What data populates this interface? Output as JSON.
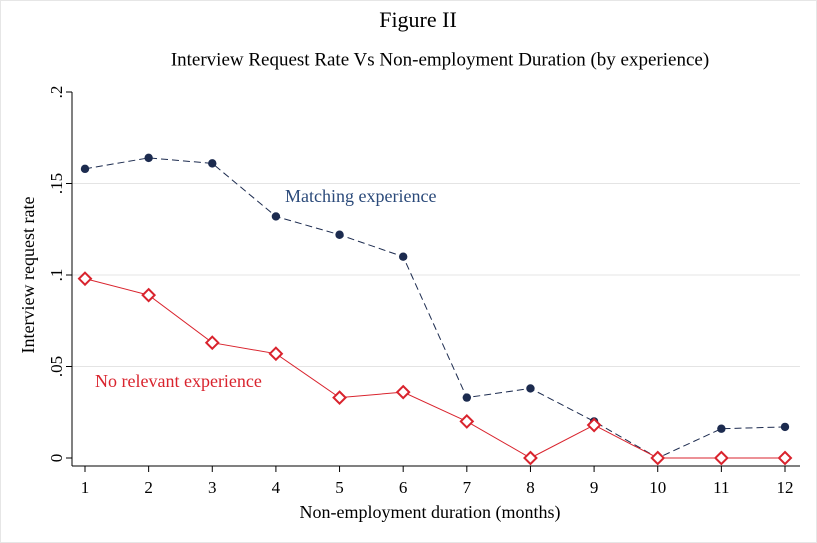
{
  "chart_data": {
    "type": "line",
    "title": "Figure II",
    "subtitle": "Interview Request Rate Vs Non-employment Duration (by experience)",
    "x_label": "Non-employment duration (months)",
    "y_label": "Interview request rate",
    "x": [
      1,
      2,
      3,
      4,
      5,
      6,
      7,
      8,
      9,
      10,
      11,
      12
    ],
    "xlim": [
      1,
      12
    ],
    "xticks": [
      1,
      2,
      3,
      4,
      5,
      6,
      7,
      8,
      9,
      10,
      11,
      12
    ],
    "ylim": [
      0,
      0.2
    ],
    "yticks": [
      0,
      {
        "value": 0.05,
        "label": ".05"
      },
      {
        "value": 0.1,
        "label": ".1"
      },
      {
        "value": 0.15,
        "label": ".15"
      },
      {
        "value": 0.2,
        "label": ".2"
      }
    ],
    "grid": true,
    "series": [
      {
        "name": "Matching experience",
        "color": "#1c2b4f",
        "label_color": "#2b4a7a",
        "linestyle": "dashed",
        "marker": "circle",
        "values": [
          0.158,
          0.164,
          0.161,
          0.132,
          0.122,
          0.11,
          0.033,
          0.038,
          0.02,
          0.0,
          0.016,
          0.017
        ]
      },
      {
        "name": "No relevant experience",
        "color": "#d9232d",
        "label_color": "#d9232d",
        "linestyle": "solid",
        "marker": "diamond",
        "values": [
          0.098,
          0.089,
          0.063,
          0.057,
          0.033,
          0.036,
          0.02,
          0.0,
          0.018,
          0.0,
          0.0,
          0.0
        ]
      }
    ]
  }
}
